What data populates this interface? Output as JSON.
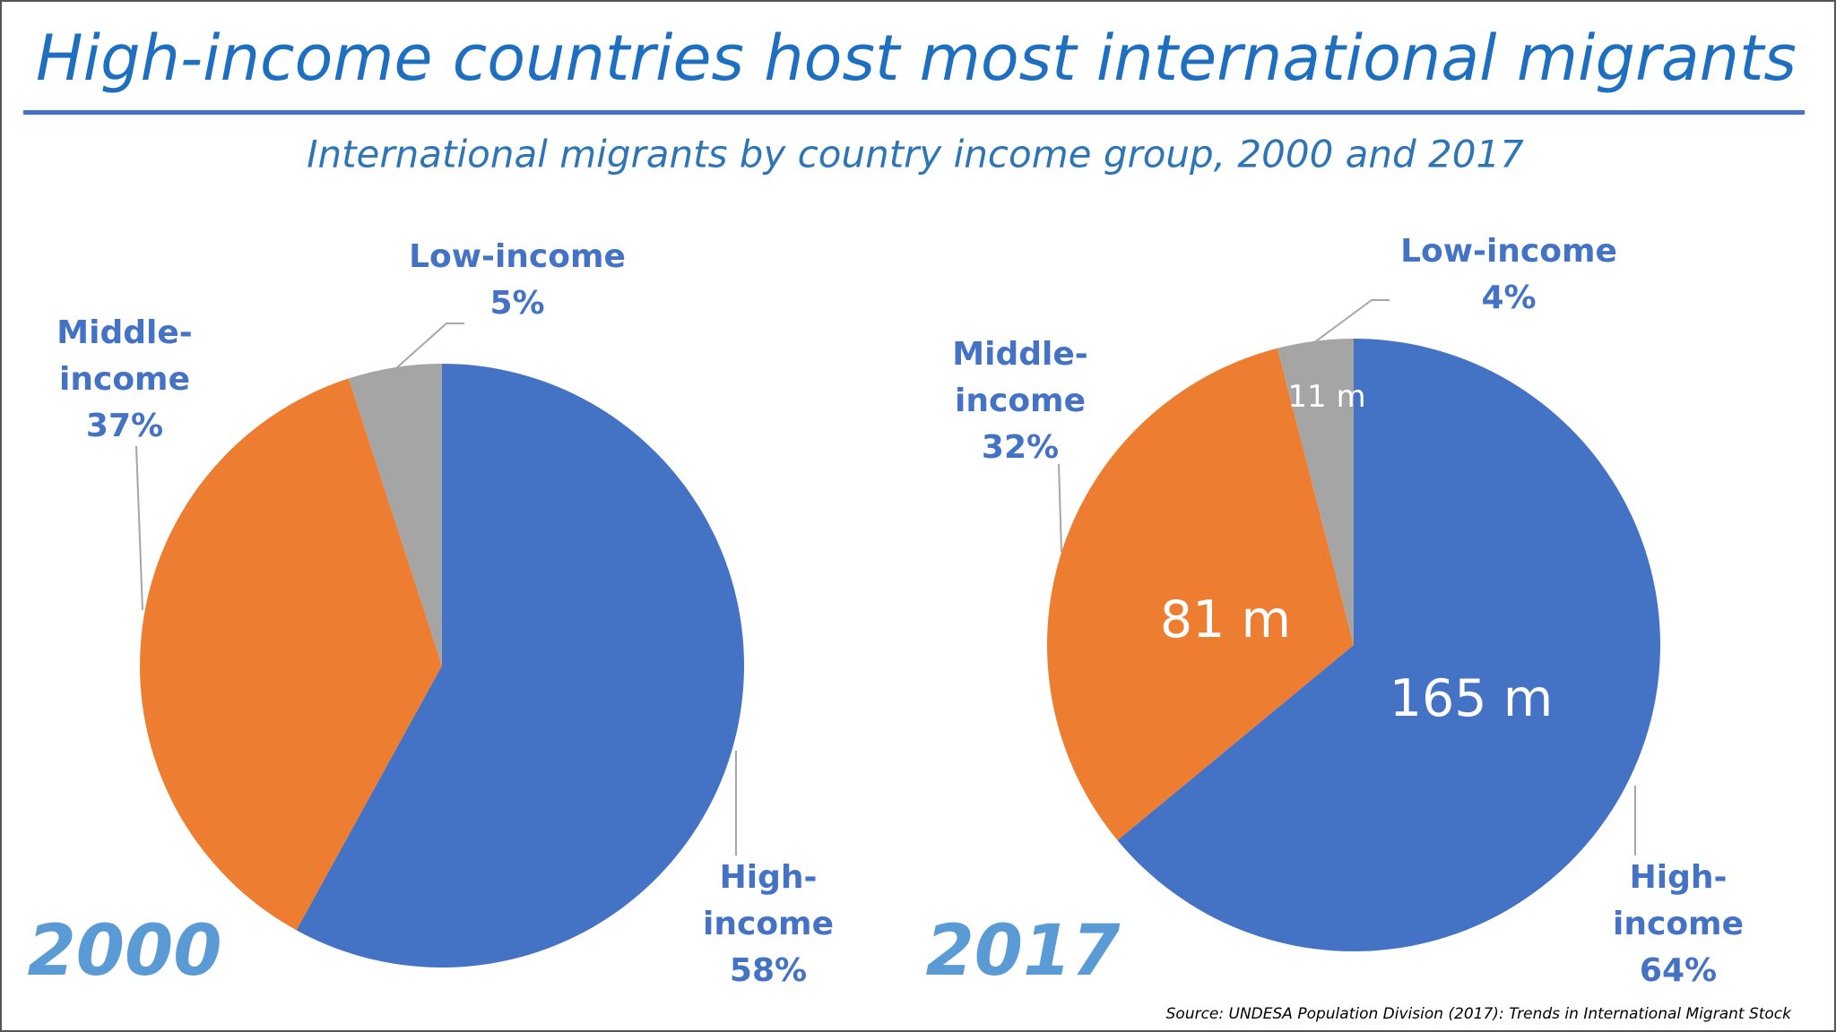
{
  "header": {
    "title": "High-income countries host most international migrants",
    "subtitle": "International migrants by country income group, 2000 and 2017"
  },
  "chart_data": [
    {
      "type": "pie",
      "title": "2000",
      "categories": [
        "High-income",
        "Middle-income",
        "Low-income"
      ],
      "values": [
        58,
        37,
        5
      ],
      "value_labels": [
        "58%",
        "37%",
        "5%"
      ],
      "colors": [
        "#4472c4",
        "#ed7d31",
        "#a5a5a5"
      ]
    },
    {
      "type": "pie",
      "title": "2017",
      "categories": [
        "High-income",
        "Middle-income",
        "Low-income"
      ],
      "values": [
        64,
        32,
        4
      ],
      "value_labels": [
        "64%",
        "32%",
        "4%"
      ],
      "colors": [
        "#4472c4",
        "#ed7d31",
        "#a5a5a5"
      ],
      "counts": [
        165,
        81,
        11
      ],
      "count_labels": [
        "165 m",
        "81 m",
        "11 m"
      ]
    }
  ],
  "source": "Source: UNDESA Population Division (2017): Trends in International Migrant Stock"
}
